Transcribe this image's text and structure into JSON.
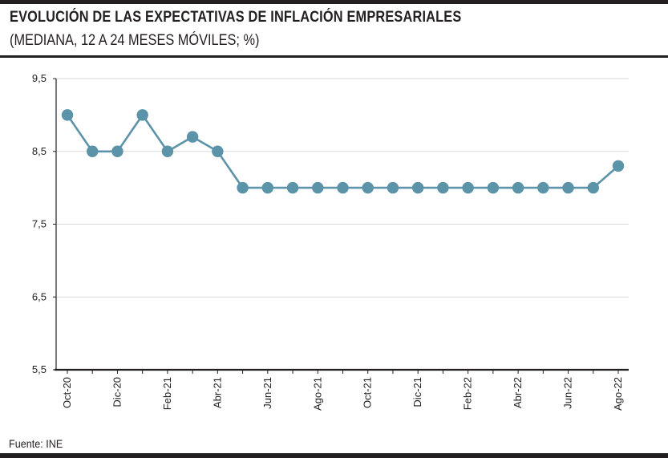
{
  "header": {
    "title": "EVOLUCIÓN DE LAS EXPECTATIVAS DE INFLACIÓN EMPRESARIALES",
    "subtitle": "(MEDIANA, 12 A 24 MESES MÓVILES; %)"
  },
  "footer": {
    "source": "Fuente: INE"
  },
  "colors": {
    "series": "#5b93a9",
    "grid": "#d9d9d9",
    "axis": "#231f20"
  },
  "chart_data": {
    "type": "line",
    "title": "EVOLUCIÓN DE LAS EXPECTATIVAS DE INFLACIÓN EMPRESARIALES",
    "subtitle": "(MEDIANA, 12 A 24 MESES MÓVILES; %)",
    "xlabel": "",
    "ylabel": "",
    "ylim": [
      5.5,
      9.5
    ],
    "grid": true,
    "y_ticks": [
      "9,5",
      "8,5",
      "7,5",
      "6,5",
      "5,5"
    ],
    "x_tick_labels": [
      "Oct-20",
      "Dic-20",
      "Feb-21",
      "Abr-21",
      "Jun-21",
      "Ago-21",
      "Oct-21",
      "Dic-21",
      "Feb-22",
      "Abr-22",
      "Jun-22",
      "Ago-22"
    ],
    "categories": [
      "Oct-20",
      "Nov-20",
      "Dic-20",
      "Ene-21",
      "Feb-21",
      "Mar-21",
      "Abr-21",
      "May-21",
      "Jun-21",
      "Jul-21",
      "Ago-21",
      "Sep-21",
      "Oct-21",
      "Nov-21",
      "Dic-21",
      "Ene-22",
      "Feb-22",
      "Mar-22",
      "Abr-22",
      "May-22",
      "Jun-22",
      "Jul-22",
      "Ago-22"
    ],
    "series": [
      {
        "name": "Expectativas de inflación empresariales",
        "values": [
          9.0,
          8.5,
          8.5,
          9.0,
          8.5,
          8.7,
          8.5,
          8.0,
          8.0,
          8.0,
          8.0,
          8.0,
          8.0,
          8.0,
          8.0,
          8.0,
          8.0,
          8.0,
          8.0,
          8.0,
          8.0,
          8.0,
          8.3
        ]
      }
    ]
  }
}
